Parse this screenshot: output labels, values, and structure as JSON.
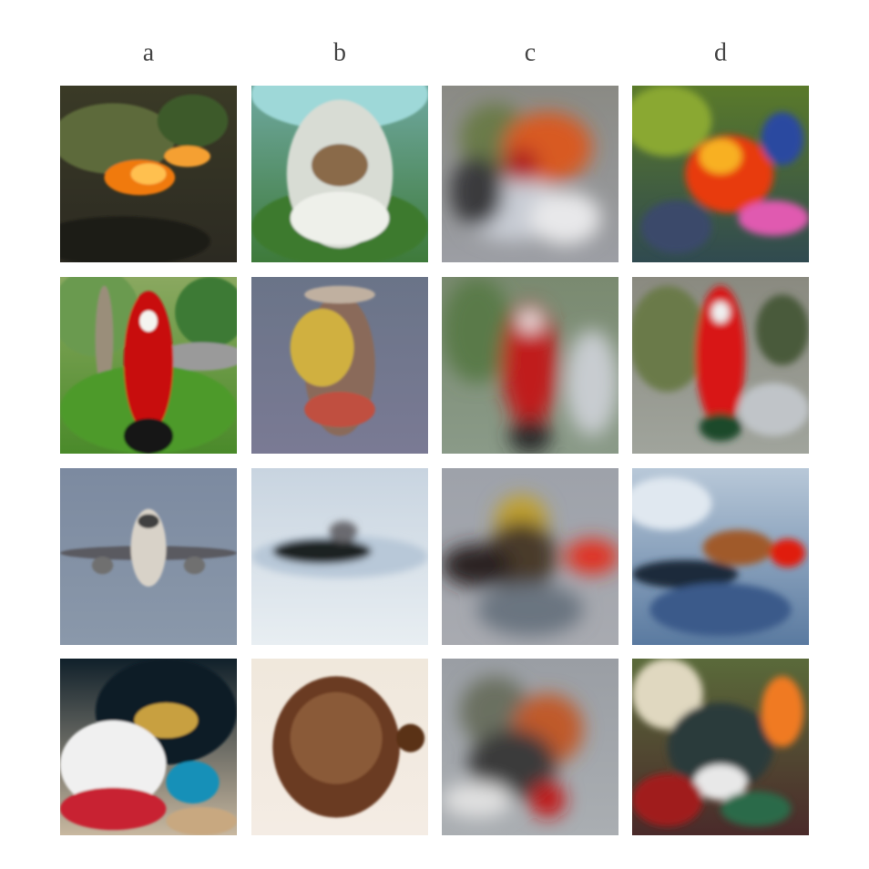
{
  "columns": [
    "a",
    "b",
    "c",
    "d"
  ]
}
